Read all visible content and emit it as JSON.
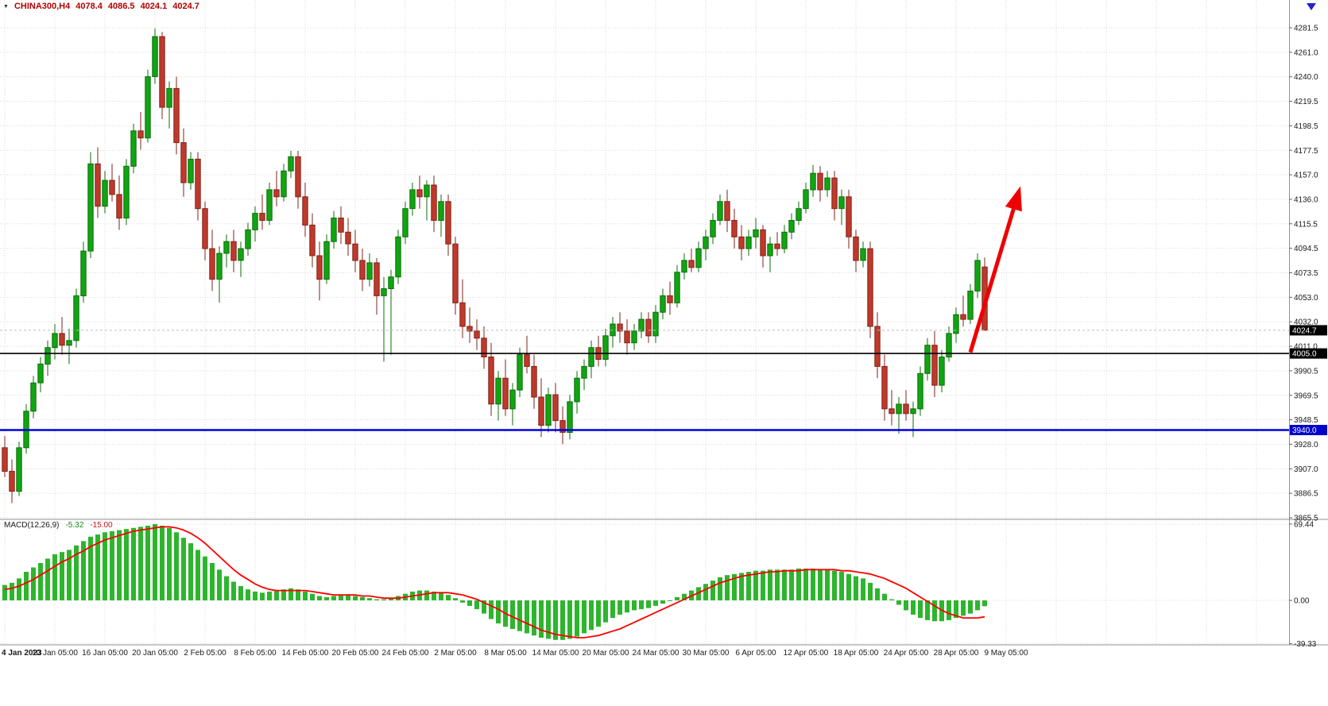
{
  "header": {
    "symbol": "CHINA300,H4",
    "open": "4078.4",
    "high": "4086.5",
    "low": "4024.1",
    "close": "4024.7"
  },
  "macd": {
    "label": "MACD(12,26,9)",
    "value_macd": "-5.32",
    "value_signal": "-15.00"
  },
  "colors": {
    "up": "#11a511",
    "up_border": "#0b6e0b",
    "down": "#c0392b",
    "down_border": "#7e2318",
    "grid": "#d9d9d9",
    "macd_hist": "#2db52d",
    "macd_signal": "#ff0000",
    "hline_black": "#000000",
    "hline_blue": "#0000e0",
    "arrow": "#ee0000",
    "tag_black_bg": "#000000",
    "tag_blue_bg": "#0000cc",
    "symbol_text": "#b30000",
    "axis_text": "#1a1a1a"
  },
  "chart_data": {
    "type": "candlestick",
    "title": "CHINA300,H4",
    "timeframe": "H4",
    "bars_per_x_tick": 7,
    "x_tick_labels": [
      "4 Jan 2023",
      "10 Jan 05:00",
      "16 Jan 05:00",
      "20 Jan 05:00",
      "2 Feb 05:00",
      "8 Feb 05:00",
      "14 Feb 05:00",
      "20 Feb 05:00",
      "24 Feb 05:00",
      "2 Mar 05:00",
      "8 Mar 05:00",
      "14 Mar 05:00",
      "20 Mar 05:00",
      "24 Mar 05:00",
      "30 Mar 05:00",
      "6 Apr 05:00",
      "12 Apr 05:00",
      "18 Apr 05:00",
      "24 Apr 05:00",
      "28 Apr 05:00",
      "9 May 05:00"
    ],
    "y_axis": {
      "max": 4281.5,
      "min": 3865.5,
      "labels": [
        "4281.5",
        "4261.0",
        "4240.0",
        "4219.5",
        "4198.5",
        "4177.5",
        "4157.0",
        "4136.0",
        "4115.5",
        "4094.5",
        "4073.5",
        "4053.0",
        "4032.0",
        "4011.0",
        "3990.5",
        "3969.5",
        "3948.5",
        "3928.0",
        "3907.0",
        "3886.5",
        "3865.5"
      ]
    },
    "candles": [
      [
        3925,
        3935,
        3900,
        3905
      ],
      [
        3905,
        3915,
        3878,
        3888
      ],
      [
        3888,
        3930,
        3884,
        3925
      ],
      [
        3925,
        3962,
        3920,
        3956
      ],
      [
        3956,
        3986,
        3950,
        3980
      ],
      [
        3980,
        4002,
        3972,
        3996
      ],
      [
        3996,
        4016,
        3986,
        4010
      ],
      [
        4010,
        4030,
        4000,
        4022
      ],
      [
        4022,
        4036,
        4004,
        4012
      ],
      [
        4012,
        4026,
        3996,
        4016
      ],
      [
        4016,
        4060,
        4010,
        4054
      ],
      [
        4054,
        4100,
        4048,
        4092
      ],
      [
        4092,
        4176,
        4086,
        4166
      ],
      [
        4166,
        4180,
        4120,
        4130
      ],
      [
        4130,
        4160,
        4124,
        4152
      ],
      [
        4152,
        4166,
        4134,
        4140
      ],
      [
        4140,
        4156,
        4110,
        4120
      ],
      [
        4120,
        4170,
        4114,
        4164
      ],
      [
        4164,
        4200,
        4158,
        4194
      ],
      [
        4194,
        4210,
        4178,
        4188
      ],
      [
        4188,
        4246,
        4184,
        4240
      ],
      [
        4240,
        4281,
        4234,
        4274
      ],
      [
        4274,
        4278,
        4204,
        4214
      ],
      [
        4214,
        4236,
        4196,
        4230
      ],
      [
        4230,
        4240,
        4174,
        4184
      ],
      [
        4184,
        4196,
        4138,
        4150
      ],
      [
        4150,
        4176,
        4144,
        4170
      ],
      [
        4170,
        4176,
        4118,
        4128
      ],
      [
        4128,
        4134,
        4084,
        4094
      ],
      [
        4094,
        4110,
        4058,
        4068
      ],
      [
        4068,
        4096,
        4048,
        4090
      ],
      [
        4090,
        4106,
        4078,
        4100
      ],
      [
        4100,
        4110,
        4074,
        4084
      ],
      [
        4084,
        4100,
        4070,
        4094
      ],
      [
        4094,
        4116,
        4088,
        4110
      ],
      [
        4110,
        4130,
        4100,
        4124
      ],
      [
        4124,
        4140,
        4110,
        4118
      ],
      [
        4118,
        4150,
        4114,
        4144
      ],
      [
        4144,
        4160,
        4130,
        4138
      ],
      [
        4138,
        4166,
        4134,
        4160
      ],
      [
        4160,
        4177,
        4154,
        4172
      ],
      [
        4172,
        4177,
        4128,
        4138
      ],
      [
        4138,
        4150,
        4104,
        4114
      ],
      [
        4114,
        4124,
        4078,
        4088
      ],
      [
        4088,
        4100,
        4050,
        4068
      ],
      [
        4068,
        4106,
        4064,
        4100
      ],
      [
        4100,
        4126,
        4094,
        4120
      ],
      [
        4120,
        4130,
        4098,
        4108
      ],
      [
        4108,
        4120,
        4088,
        4098
      ],
      [
        4098,
        4110,
        4074,
        4084
      ],
      [
        4084,
        4094,
        4058,
        4068
      ],
      [
        4068,
        4090,
        4062,
        4082
      ],
      [
        4082,
        4086,
        4038,
        4054
      ],
      [
        4054,
        4070,
        3998,
        4060
      ],
      [
        4060,
        4076,
        4004,
        4070
      ],
      [
        4070,
        4110,
        4064,
        4104
      ],
      [
        4104,
        4134,
        4098,
        4128
      ],
      [
        4128,
        4150,
        4122,
        4144
      ],
      [
        4144,
        4156,
        4128,
        4138
      ],
      [
        4138,
        4152,
        4118,
        4148
      ],
      [
        4148,
        4156,
        4108,
        4118
      ],
      [
        4118,
        4140,
        4104,
        4134
      ],
      [
        4134,
        4140,
        4088,
        4098
      ],
      [
        4098,
        4104,
        4038,
        4048
      ],
      [
        4048,
        4068,
        4018,
        4028
      ],
      [
        4028,
        4044,
        4014,
        4024
      ],
      [
        4024,
        4034,
        4008,
        4018
      ],
      [
        4018,
        4028,
        3992,
        4002
      ],
      [
        4002,
        4014,
        3952,
        3962
      ],
      [
        3962,
        3990,
        3948,
        3984
      ],
      [
        3984,
        4000,
        3952,
        3958
      ],
      [
        3958,
        3980,
        3944,
        3974
      ],
      [
        3974,
        4010,
        3968,
        4004
      ],
      [
        4004,
        4020,
        3988,
        3994
      ],
      [
        3994,
        4004,
        3958,
        3968
      ],
      [
        3968,
        3984,
        3934,
        3944
      ],
      [
        3944,
        3976,
        3938,
        3970
      ],
      [
        3970,
        3980,
        3938,
        3948
      ],
      [
        3948,
        3960,
        3928,
        3938
      ],
      [
        3938,
        3970,
        3932,
        3964
      ],
      [
        3964,
        3990,
        3954,
        3984
      ],
      [
        3984,
        4000,
        3974,
        3994
      ],
      [
        3994,
        4016,
        3984,
        4010
      ],
      [
        4010,
        4020,
        3994,
        4000
      ],
      [
        4000,
        4026,
        3994,
        4020
      ],
      [
        4020,
        4036,
        4010,
        4030
      ],
      [
        4030,
        4040,
        4014,
        4024
      ],
      [
        4024,
        4034,
        4004,
        4014
      ],
      [
        4014,
        4030,
        4008,
        4024
      ],
      [
        4024,
        4040,
        4018,
        4034
      ],
      [
        4034,
        4040,
        4014,
        4020
      ],
      [
        4020,
        4046,
        4014,
        4040
      ],
      [
        4040,
        4060,
        4034,
        4054
      ],
      [
        4054,
        4066,
        4038,
        4048
      ],
      [
        4048,
        4080,
        4044,
        4074
      ],
      [
        4074,
        4090,
        4068,
        4084
      ],
      [
        4084,
        4094,
        4074,
        4078
      ],
      [
        4078,
        4100,
        4074,
        4094
      ],
      [
        4094,
        4110,
        4084,
        4104
      ],
      [
        4104,
        4124,
        4098,
        4118
      ],
      [
        4118,
        4140,
        4114,
        4134
      ],
      [
        4134,
        4144,
        4108,
        4118
      ],
      [
        4118,
        4128,
        4094,
        4104
      ],
      [
        4104,
        4114,
        4084,
        4094
      ],
      [
        4094,
        4110,
        4088,
        4104
      ],
      [
        4104,
        4120,
        4094,
        4110
      ],
      [
        4110,
        4114,
        4078,
        4088
      ],
      [
        4088,
        4104,
        4074,
        4098
      ],
      [
        4098,
        4108,
        4088,
        4094
      ],
      [
        4094,
        4114,
        4090,
        4108
      ],
      [
        4108,
        4124,
        4102,
        4118
      ],
      [
        4118,
        4134,
        4114,
        4128
      ],
      [
        4128,
        4150,
        4124,
        4144
      ],
      [
        4144,
        4165,
        4138,
        4158
      ],
      [
        4158,
        4164,
        4134,
        4144
      ],
      [
        4144,
        4160,
        4138,
        4154
      ],
      [
        4154,
        4160,
        4118,
        4128
      ],
      [
        4128,
        4144,
        4114,
        4138
      ],
      [
        4138,
        4144,
        4094,
        4104
      ],
      [
        4104,
        4110,
        4074,
        4084
      ],
      [
        4084,
        4100,
        4078,
        4094
      ],
      [
        4094,
        4100,
        4018,
        4028
      ],
      [
        4028,
        4040,
        3984,
        3994
      ],
      [
        3994,
        4004,
        3948,
        3958
      ],
      [
        3958,
        3974,
        3944,
        3954
      ],
      [
        3954,
        3968,
        3937,
        3962
      ],
      [
        3962,
        3974,
        3948,
        3954
      ],
      [
        3954,
        3964,
        3934,
        3958
      ],
      [
        3958,
        3994,
        3952,
        3988
      ],
      [
        3988,
        4018,
        3982,
        4012
      ],
      [
        4012,
        4024,
        3968,
        3978
      ],
      [
        3978,
        4008,
        3972,
        4002
      ],
      [
        4002,
        4028,
        3998,
        4022
      ],
      [
        4022,
        4044,
        4014,
        4038
      ],
      [
        4038,
        4054,
        4028,
        4034
      ],
      [
        4034,
        4064,
        4030,
        4058
      ],
      [
        4058,
        4090,
        4052,
        4084
      ],
      [
        4078.4,
        4086.5,
        4024.1,
        4024.7
      ]
    ],
    "overlays": {
      "current_price": 4024.7,
      "black_hline": 4005.0,
      "blue_hline": 3940.0,
      "arrow": {
        "from": {
          "bar": 135,
          "price": 4006
        },
        "to": {
          "bar": 142,
          "price": 4147
        },
        "color": "#ee0000"
      }
    },
    "indicator": {
      "name": "MACD(12,26,9)",
      "macd_value": -5.32,
      "signal_value": -15.0,
      "scale": {
        "values": [
          69.44,
          0,
          -39.33
        ],
        "labels": [
          "69.44",
          "0.00",
          "-39.33"
        ]
      },
      "histogram": [
        14,
        16,
        20,
        26,
        30,
        34,
        38,
        42,
        44,
        46,
        50,
        54,
        58,
        60,
        62,
        63,
        64,
        65,
        66,
        67,
        68,
        69.44,
        68,
        66,
        62,
        57,
        52,
        46,
        40,
        34,
        28,
        22,
        17,
        13,
        10,
        8,
        7,
        8,
        9,
        10,
        11,
        10,
        8,
        6,
        4,
        3,
        4,
        5,
        5,
        4,
        3,
        2,
        1,
        1,
        2,
        4,
        6,
        8,
        9,
        9,
        8,
        7,
        5,
        2,
        -2,
        -5,
        -8,
        -12,
        -17,
        -21,
        -24,
        -26,
        -28,
        -30,
        -32,
        -34,
        -35,
        -36,
        -36,
        -35,
        -33,
        -30,
        -27,
        -24,
        -20,
        -16,
        -13,
        -11,
        -9,
        -8,
        -7,
        -5,
        -3,
        0,
        3,
        6,
        9,
        12,
        15,
        18,
        21,
        23,
        24,
        25,
        26,
        27,
        27,
        28,
        28,
        28,
        28,
        29,
        29,
        29,
        28,
        28,
        27,
        26,
        24,
        22,
        20,
        16,
        11,
        6,
        1,
        -4,
        -9,
        -13,
        -16,
        -18,
        -19,
        -19,
        -18,
        -16,
        -14,
        -12,
        -9,
        -5.32
      ],
      "signal": [
        10,
        11,
        13,
        16,
        19,
        23,
        27,
        31,
        35,
        38,
        42,
        45,
        49,
        52,
        55,
        57,
        59,
        61,
        63,
        64,
        65,
        66,
        67,
        67,
        66,
        64,
        61,
        57,
        52,
        46,
        40,
        34,
        28,
        23,
        19,
        15,
        12,
        10,
        9,
        9,
        9,
        9,
        9,
        8,
        7,
        6,
        5,
        5,
        5,
        5,
        4,
        4,
        3,
        2,
        2,
        2,
        3,
        4,
        5,
        6,
        7,
        7,
        7,
        6,
        5,
        3,
        1,
        -2,
        -5,
        -8,
        -12,
        -15,
        -18,
        -21,
        -24,
        -27,
        -29,
        -31,
        -32,
        -33,
        -34,
        -34,
        -33,
        -32,
        -30,
        -28,
        -26,
        -23,
        -20,
        -17,
        -14,
        -11,
        -8,
        -5,
        -2,
        1,
        4,
        7,
        10,
        13,
        16,
        18,
        20,
        22,
        23,
        24,
        25,
        26,
        26,
        27,
        27,
        27,
        28,
        28,
        28,
        28,
        28,
        27,
        27,
        26,
        25,
        24,
        22,
        20,
        17,
        14,
        11,
        7,
        3,
        -1,
        -5,
        -9,
        -12,
        -14,
        -16,
        -16,
        -16,
        -15
      ]
    }
  }
}
